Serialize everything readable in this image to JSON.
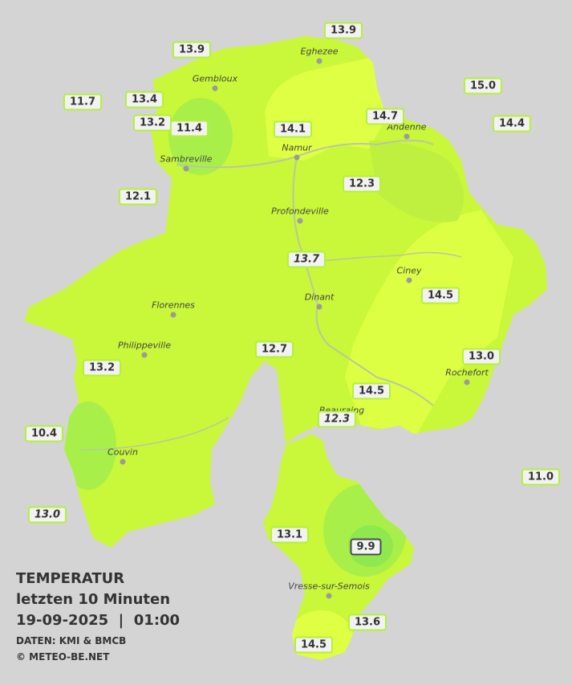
{
  "header": {
    "title": "TEMPERATUR",
    "subtitle": "letzten 10 Minuten",
    "datetime": "19-09-2025  |  01:00",
    "source": "DATEN: KMI & BMCB",
    "copyright": "© METEO-BE.NET"
  },
  "cities": [
    {
      "name": "Gembloux"
    },
    {
      "name": "Eghezee"
    },
    {
      "name": "Andenne"
    },
    {
      "name": "Namur"
    },
    {
      "name": "Sambreville"
    },
    {
      "name": "Profondeville"
    },
    {
      "name": "Ciney"
    },
    {
      "name": "Dinant"
    },
    {
      "name": "Florennes"
    },
    {
      "name": "Philippeville"
    },
    {
      "name": "Rochefort"
    },
    {
      "name": "Beauraing"
    },
    {
      "name": "Couvin"
    },
    {
      "name": "Vresse-sur-Semois"
    }
  ],
  "stations": [
    {
      "label": "13.9"
    },
    {
      "label": "13.9"
    },
    {
      "label": "11.7"
    },
    {
      "label": "13.4"
    },
    {
      "label": "13.2"
    },
    {
      "label": "11.4"
    },
    {
      "label": "15.0"
    },
    {
      "label": "14.7"
    },
    {
      "label": "14.4"
    },
    {
      "label": "14.1"
    },
    {
      "label": "12.3"
    },
    {
      "label": "12.1"
    },
    {
      "label": "13.7",
      "italic": true
    },
    {
      "label": "14.5"
    },
    {
      "label": "12.7"
    },
    {
      "label": "13.0"
    },
    {
      "label": "13.2"
    },
    {
      "label": "14.5"
    },
    {
      "label": "12.3",
      "italic": true
    },
    {
      "label": "10.4"
    },
    {
      "label": "11.0"
    },
    {
      "label": "13.0",
      "italic": true
    },
    {
      "label": "13.1"
    },
    {
      "label": "9.9",
      "highlight": true
    },
    {
      "label": "13.6"
    },
    {
      "label": "14.5"
    }
  ]
}
